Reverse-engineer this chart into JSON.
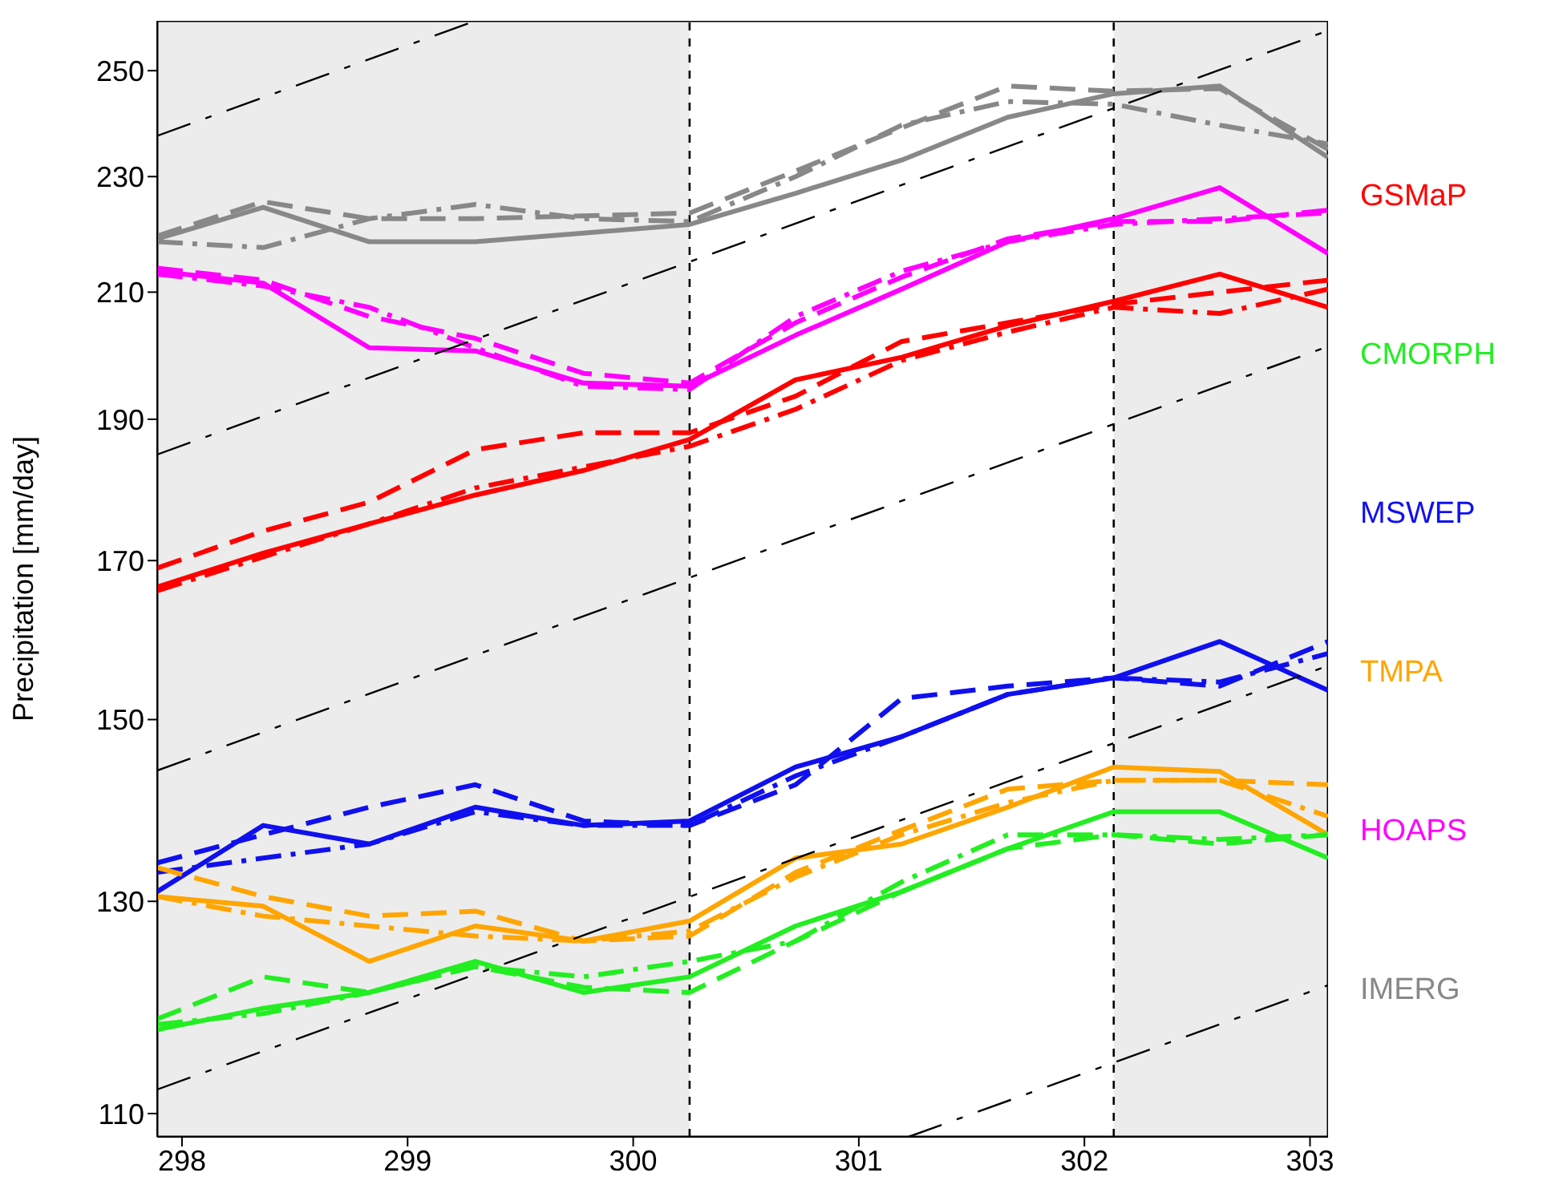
{
  "chart_data": {
    "type": "line",
    "ylabel": "Precipitation [mm/day]",
    "log": "y",
    "grid": false,
    "legend": "right",
    "x": [
      297.89,
      298.36,
      298.83,
      299.3,
      299.78,
      300.25,
      300.72,
      301.19,
      301.66,
      302.13,
      302.6,
      303.08
    ],
    "xlim": [
      297.89,
      303.08
    ],
    "xticks": [
      298,
      299,
      300,
      301,
      302,
      303
    ],
    "ylim": [
      108,
      260
    ],
    "yticks": [
      110,
      130,
      150,
      170,
      190,
      210,
      230,
      250
    ],
    "bands": [
      {
        "axis": "x",
        "from": 297.89,
        "to": 300.25,
        "color": "#ececec"
      },
      {
        "axis": "x",
        "from": 302.13,
        "to": 303.08,
        "color": "#ececec"
      }
    ],
    "ref_lines": [
      {
        "axis": "x",
        "value": 300.25,
        "color": "#000000",
        "line_style": "dashed"
      },
      {
        "axis": "x",
        "value": 302.13,
        "color": "#000000",
        "line_style": "dashed"
      }
    ],
    "series": [
      {
        "name": "GSMaP",
        "color": "#ff0000",
        "line_style": "solid",
        "values": [
          166.5,
          171,
          175,
          179,
          182.5,
          187,
          196,
          199.5,
          204.5,
          208.5,
          213,
          207.5
        ]
      },
      {
        "name": "CMORPH",
        "color": "#22ee22",
        "line_style": "solid",
        "values": [
          117.5,
          119.5,
          121,
          124,
          121,
          122.5,
          127.5,
          131,
          135.5,
          139.5,
          139.5,
          134.5
        ]
      },
      {
        "name": "MSWEP",
        "color": "#1010ee",
        "line_style": "solid",
        "values": [
          131,
          138,
          136,
          140,
          138,
          138.5,
          144.5,
          148,
          153,
          155,
          159.5,
          153.5
        ]
      },
      {
        "name": "TMPA",
        "color": "#ffa500",
        "line_style": "solid",
        "values": [
          130.5,
          129.5,
          124,
          127.5,
          126,
          128,
          134.5,
          136,
          140,
          144.5,
          144,
          137
        ]
      },
      {
        "name": "HOAPS",
        "color": "#ff00ff",
        "line_style": "solid",
        "values": [
          213.5,
          211.5,
          201,
          200.5,
          195.5,
          195,
          203,
          210.5,
          218.5,
          222.5,
          228,
          216.5
        ]
      },
      {
        "name": "IMERG",
        "color": "#888888",
        "line_style": "solid",
        "values": [
          219,
          224.5,
          218.5,
          218.5,
          220,
          221.5,
          227,
          233,
          241,
          245.5,
          247,
          233.5
        ]
      },
      {
        "color": "#ff0000",
        "line_style": "dashed",
        "values": [
          169,
          174,
          178,
          185.5,
          188,
          188,
          193.5,
          202,
          205,
          208,
          210,
          212
        ]
      },
      {
        "color": "#ff0000",
        "line_style": "dashdot",
        "values": [
          166,
          170.5,
          175,
          180,
          183,
          186,
          191.5,
          199,
          203.5,
          207.5,
          206.5,
          210.5
        ]
      },
      {
        "color": "#22ee22",
        "line_style": "dashed",
        "values": [
          118.5,
          122.5,
          121,
          123.5,
          121.5,
          121,
          126,
          131,
          135.5,
          137,
          136,
          137
        ]
      },
      {
        "color": "#22ee22",
        "line_style": "dashdot",
        "values": [
          118,
          119,
          121,
          123.5,
          122.5,
          124,
          126,
          132,
          137,
          137,
          136.5,
          137
        ]
      },
      {
        "color": "#1010ee",
        "line_style": "dashed",
        "values": [
          134,
          137,
          140,
          142.5,
          138.5,
          138,
          142.5,
          152.5,
          154,
          155,
          154,
          159.5
        ]
      },
      {
        "color": "#1010ee",
        "line_style": "dashdot",
        "values": [
          133,
          134.5,
          136,
          139.5,
          138,
          138,
          143.5,
          148,
          153,
          155,
          154.5,
          158
        ]
      },
      {
        "color": "#ffa500",
        "line_style": "dashed",
        "values": [
          133.5,
          130.5,
          128.5,
          129,
          126,
          126.5,
          133,
          137.5,
          142,
          143,
          143,
          142.5
        ]
      },
      {
        "color": "#ffa500",
        "line_style": "dashdot",
        "values": [
          130.5,
          128.5,
          127.5,
          126.5,
          126,
          127,
          132.5,
          137,
          140.5,
          143,
          143,
          139
        ]
      },
      {
        "color": "#ff00ff",
        "line_style": "dashed",
        "values": [
          214,
          212,
          206,
          202.5,
          197,
          195.5,
          205,
          212.5,
          219,
          222,
          222,
          224
        ]
      },
      {
        "color": "#ff00ff",
        "line_style": "dashdot",
        "values": [
          213,
          211,
          207.5,
          201,
          195,
          194.5,
          206,
          213.5,
          218.5,
          221.5,
          222.5,
          223.5
        ]
      },
      {
        "color": "#888888",
        "line_style": "dashed",
        "values": [
          219.5,
          225.5,
          222.5,
          222.5,
          223,
          223.5,
          231,
          239,
          247,
          246,
          246.5,
          235
        ]
      },
      {
        "color": "#888888",
        "line_style": "dashdot",
        "values": [
          218.5,
          217.5,
          222.5,
          225,
          222.5,
          222,
          230,
          239.5,
          244,
          243.5,
          239.5,
          236
        ]
      },
      {
        "type": "line",
        "color": "#000000",
        "line_style": "dashdot",
        "x": [
          297.89,
          299.3
        ],
        "values": [
          237.5,
          260
        ]
      },
      {
        "type": "line",
        "color": "#000000",
        "line_style": "dashdot",
        "x": [
          297.89,
          303.08
        ],
        "values": [
          184.8,
          258
        ]
      },
      {
        "type": "line",
        "color": "#000000",
        "line_style": "dashdot",
        "x": [
          297.89,
          303.08
        ],
        "values": [
          144.1,
          201.2
        ]
      },
      {
        "type": "line",
        "color": "#000000",
        "line_style": "dashdot",
        "x": [
          297.89,
          303.08
        ],
        "values": [
          112.1,
          156.5
        ]
      },
      {
        "type": "line",
        "color": "#000000",
        "line_style": "dashdot",
        "x": [
          301.22,
          303.08
        ],
        "values": [
          108,
          121.7
        ]
      }
    ]
  }
}
